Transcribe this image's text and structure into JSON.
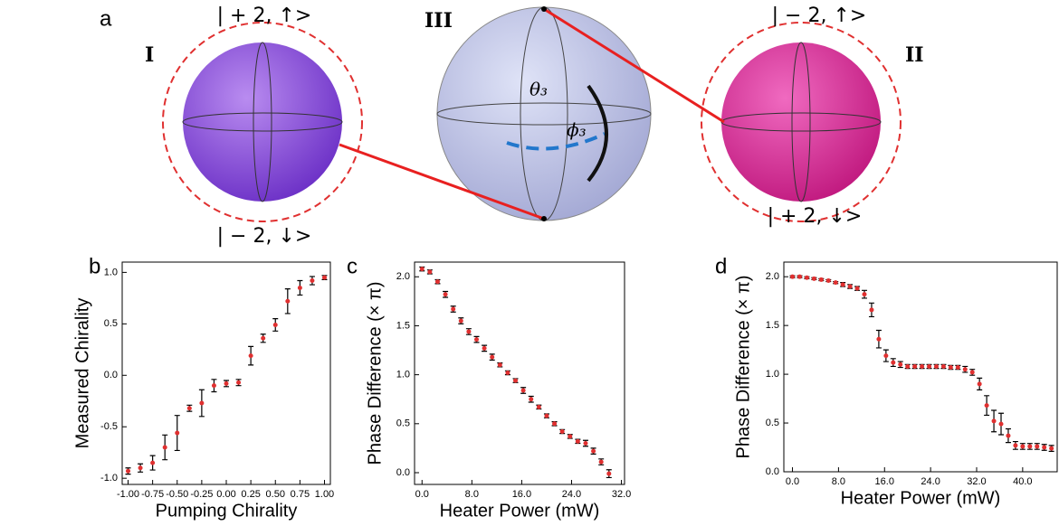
{
  "panel_a": {
    "letter": "a",
    "sphere_I": "I",
    "sphere_II": "II",
    "sphere_III": "III",
    "ket_I_top": "| + 2, ↑>",
    "ket_I_bottom": "| − 2, ↓>",
    "ket_II_top": "| − 2, ↑>",
    "ket_II_bottom": "| + 2, ↓>",
    "theta": "θ₃",
    "phi": "ϕ₃"
  },
  "chart_data": [
    {
      "type": "scatter",
      "panel": "b",
      "x_label": "Pumping Chirality",
      "y_label": "Measured Chirality",
      "color": "#e03030",
      "x": [
        -1.0,
        -0.875,
        -0.75,
        -0.625,
        -0.5,
        -0.375,
        -0.25,
        -0.125,
        0.0,
        0.125,
        0.25,
        0.375,
        0.5,
        0.625,
        0.75,
        0.875,
        1.0
      ],
      "values": [
        -0.93,
        -0.9,
        -0.85,
        -0.7,
        -0.56,
        -0.32,
        -0.27,
        -0.1,
        -0.08,
        -0.07,
        0.19,
        0.36,
        0.49,
        0.72,
        0.85,
        0.92,
        0.95
      ],
      "errors": [
        0.03,
        0.04,
        0.07,
        0.12,
        0.17,
        0.03,
        0.13,
        0.06,
        0.03,
        0.03,
        0.09,
        0.04,
        0.06,
        0.12,
        0.07,
        0.04,
        0.02
      ],
      "xlim": [
        -1.06,
        1.06
      ],
      "ylim": [
        -1.06,
        1.1
      ],
      "xticks": [
        {
          "value": -1,
          "label": "-1.00"
        },
        {
          "value": -0.75,
          "label": "-0.75"
        },
        {
          "value": -0.5,
          "label": "-0.50"
        },
        {
          "value": -0.25,
          "label": "-0.25"
        },
        {
          "value": 0,
          "label": "0.00"
        },
        {
          "value": 0.25,
          "label": "0.25"
        },
        {
          "value": 0.5,
          "label": "0.50"
        },
        {
          "value": 0.75,
          "label": "0.75"
        },
        {
          "value": 1,
          "label": "1.00"
        }
      ],
      "yticks": [
        {
          "value": -1,
          "label": "-1.0"
        },
        {
          "value": -0.5,
          "label": "-0.5"
        },
        {
          "value": 0,
          "label": "0.0"
        },
        {
          "value": 0.5,
          "label": "0.5"
        },
        {
          "value": 1,
          "label": "1.0"
        }
      ]
    },
    {
      "type": "scatter",
      "panel": "c",
      "x_label": "Heater Power (mW)",
      "y_label": "Phase Difference (× π)",
      "color": "#e03030",
      "x": [
        0,
        1.25,
        2.5,
        3.75,
        5,
        6.25,
        7.5,
        8.75,
        10,
        11.25,
        12.5,
        13.75,
        15,
        16.25,
        17.5,
        18.75,
        20,
        21.25,
        22.5,
        23.75,
        25,
        26.25,
        27.5,
        28.75,
        30
      ],
      "values": [
        2.08,
        2.05,
        1.95,
        1.82,
        1.67,
        1.55,
        1.44,
        1.36,
        1.27,
        1.18,
        1.1,
        1.02,
        0.94,
        0.84,
        0.75,
        0.67,
        0.58,
        0.5,
        0.42,
        0.37,
        0.32,
        0.3,
        0.22,
        0.11,
        -0.01
      ],
      "errors": [
        0.02,
        0.02,
        0.02,
        0.03,
        0.03,
        0.03,
        0.03,
        0.03,
        0.03,
        0.03,
        0.02,
        0.02,
        0.02,
        0.03,
        0.03,
        0.02,
        0.02,
        0.02,
        0.02,
        0.02,
        0.02,
        0.03,
        0.03,
        0.03,
        0.04
      ],
      "xlim": [
        -1.2,
        32.5
      ],
      "ylim": [
        -0.12,
        2.15
      ],
      "xticks": [
        {
          "value": 0,
          "label": "0.0"
        },
        {
          "value": 8,
          "label": "8.0"
        },
        {
          "value": 16,
          "label": "16.0"
        },
        {
          "value": 24,
          "label": "24.0"
        },
        {
          "value": 32,
          "label": "32.0"
        }
      ],
      "yticks": [
        {
          "value": 0,
          "label": "0.0"
        },
        {
          "value": 0.5,
          "label": "0.5"
        },
        {
          "value": 1,
          "label": "1.0"
        },
        {
          "value": 1.5,
          "label": "1.5"
        },
        {
          "value": 2,
          "label": "2.0"
        }
      ]
    },
    {
      "type": "scatter",
      "panel": "d",
      "x_label": "Heater Power (mW)",
      "y_label": "Phase Difference (× π)",
      "color": "#e03030",
      "x": [
        0,
        1.25,
        2.5,
        3.75,
        5,
        6.25,
        7.5,
        8.75,
        10,
        11.25,
        12.5,
        13.75,
        15,
        16.25,
        17.5,
        18.75,
        20,
        21.25,
        22.5,
        23.75,
        25,
        26.25,
        27.5,
        28.75,
        30,
        31.25,
        32.5,
        33.75,
        35,
        36.25,
        37.5,
        38.75,
        40,
        41.25,
        42.5,
        43.75,
        45
      ],
      "values": [
        2.0,
        2.0,
        1.99,
        1.98,
        1.97,
        1.96,
        1.94,
        1.92,
        1.9,
        1.88,
        1.82,
        1.66,
        1.36,
        1.19,
        1.12,
        1.1,
        1.08,
        1.08,
        1.08,
        1.08,
        1.08,
        1.08,
        1.07,
        1.07,
        1.05,
        1.02,
        0.9,
        0.68,
        0.52,
        0.49,
        0.37,
        0.27,
        0.26,
        0.26,
        0.26,
        0.25,
        0.24
      ],
      "errors": [
        0.01,
        0.01,
        0.01,
        0.01,
        0.01,
        0.01,
        0.01,
        0.02,
        0.02,
        0.02,
        0.04,
        0.07,
        0.09,
        0.06,
        0.04,
        0.03,
        0.02,
        0.02,
        0.02,
        0.02,
        0.02,
        0.02,
        0.02,
        0.02,
        0.03,
        0.03,
        0.06,
        0.1,
        0.11,
        0.11,
        0.07,
        0.04,
        0.03,
        0.03,
        0.03,
        0.03,
        0.03
      ],
      "xlim": [
        -1.5,
        46
      ],
      "ylim": [
        0,
        2.15
      ],
      "xticks": [
        {
          "value": 0,
          "label": "0.0"
        },
        {
          "value": 8,
          "label": "8.0"
        },
        {
          "value": 16,
          "label": "16.0"
        },
        {
          "value": 24,
          "label": "24.0"
        },
        {
          "value": 32,
          "label": "32.0"
        },
        {
          "value": 40,
          "label": "40.0"
        }
      ],
      "yticks": [
        {
          "value": 0,
          "label": "0.0"
        },
        {
          "value": 0.5,
          "label": "0.5"
        },
        {
          "value": 1,
          "label": "1.0"
        },
        {
          "value": 1.5,
          "label": "1.5"
        },
        {
          "value": 2,
          "label": "2.0"
        }
      ]
    }
  ]
}
